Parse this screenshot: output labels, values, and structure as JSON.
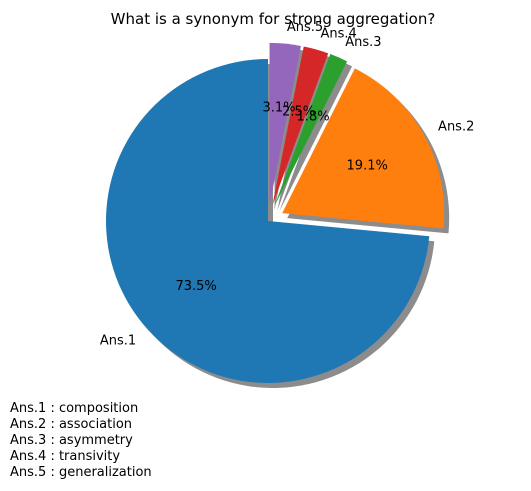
{
  "chart_data": {
    "type": "pie",
    "title": "What is a synonym for strong aggregation?",
    "slices": [
      {
        "label": "Ans.1",
        "value": 73.5,
        "pct_text": "73.5%",
        "color": "#1f77b4",
        "explode": false
      },
      {
        "label": "Ans.2",
        "value": 19.1,
        "pct_text": "19.1%",
        "color": "#ff7f0e",
        "explode": true
      },
      {
        "label": "Ans.3",
        "value": 1.8,
        "pct_text": "1.8%",
        "color": "#2ca02c",
        "explode": true
      },
      {
        "label": "Ans.4",
        "value": 2.5,
        "pct_text": "2.5%",
        "color": "#d62728",
        "explode": true
      },
      {
        "label": "Ans.5",
        "value": 3.1,
        "pct_text": "3.1%",
        "color": "#9467bd",
        "explode": true
      }
    ],
    "shadow": true,
    "legend_entries": [
      "Ans.1 : composition",
      "Ans.2 : association",
      "Ans.3 : asymmetry",
      "Ans.4 : transivity",
      "Ans.5 : generalization"
    ]
  }
}
